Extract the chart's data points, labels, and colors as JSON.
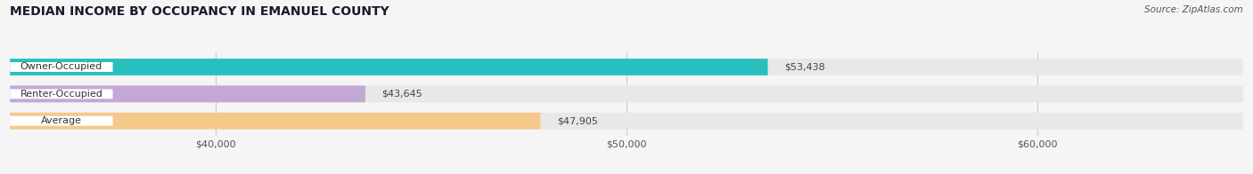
{
  "title": "MEDIAN INCOME BY OCCUPANCY IN EMANUEL COUNTY",
  "source": "Source: ZipAtlas.com",
  "categories": [
    "Owner-Occupied",
    "Renter-Occupied",
    "Average"
  ],
  "values": [
    53438,
    43645,
    47905
  ],
  "bar_colors": [
    "#29bfbf",
    "#c4a8d4",
    "#f5c98a"
  ],
  "bar_bg_color": "#e8e8e8",
  "value_labels": [
    "$53,438",
    "$43,645",
    "$47,905"
  ],
  "xlim_min": 35000,
  "xlim_max": 65000,
  "xticks": [
    40000,
    50000,
    60000
  ],
  "xtick_labels": [
    "$40,000",
    "$50,000",
    "$60,000"
  ],
  "bar_height": 0.62,
  "background_color": "#f5f5f5",
  "grid_color": "#cccccc",
  "label_bg_color": "#ffffff"
}
